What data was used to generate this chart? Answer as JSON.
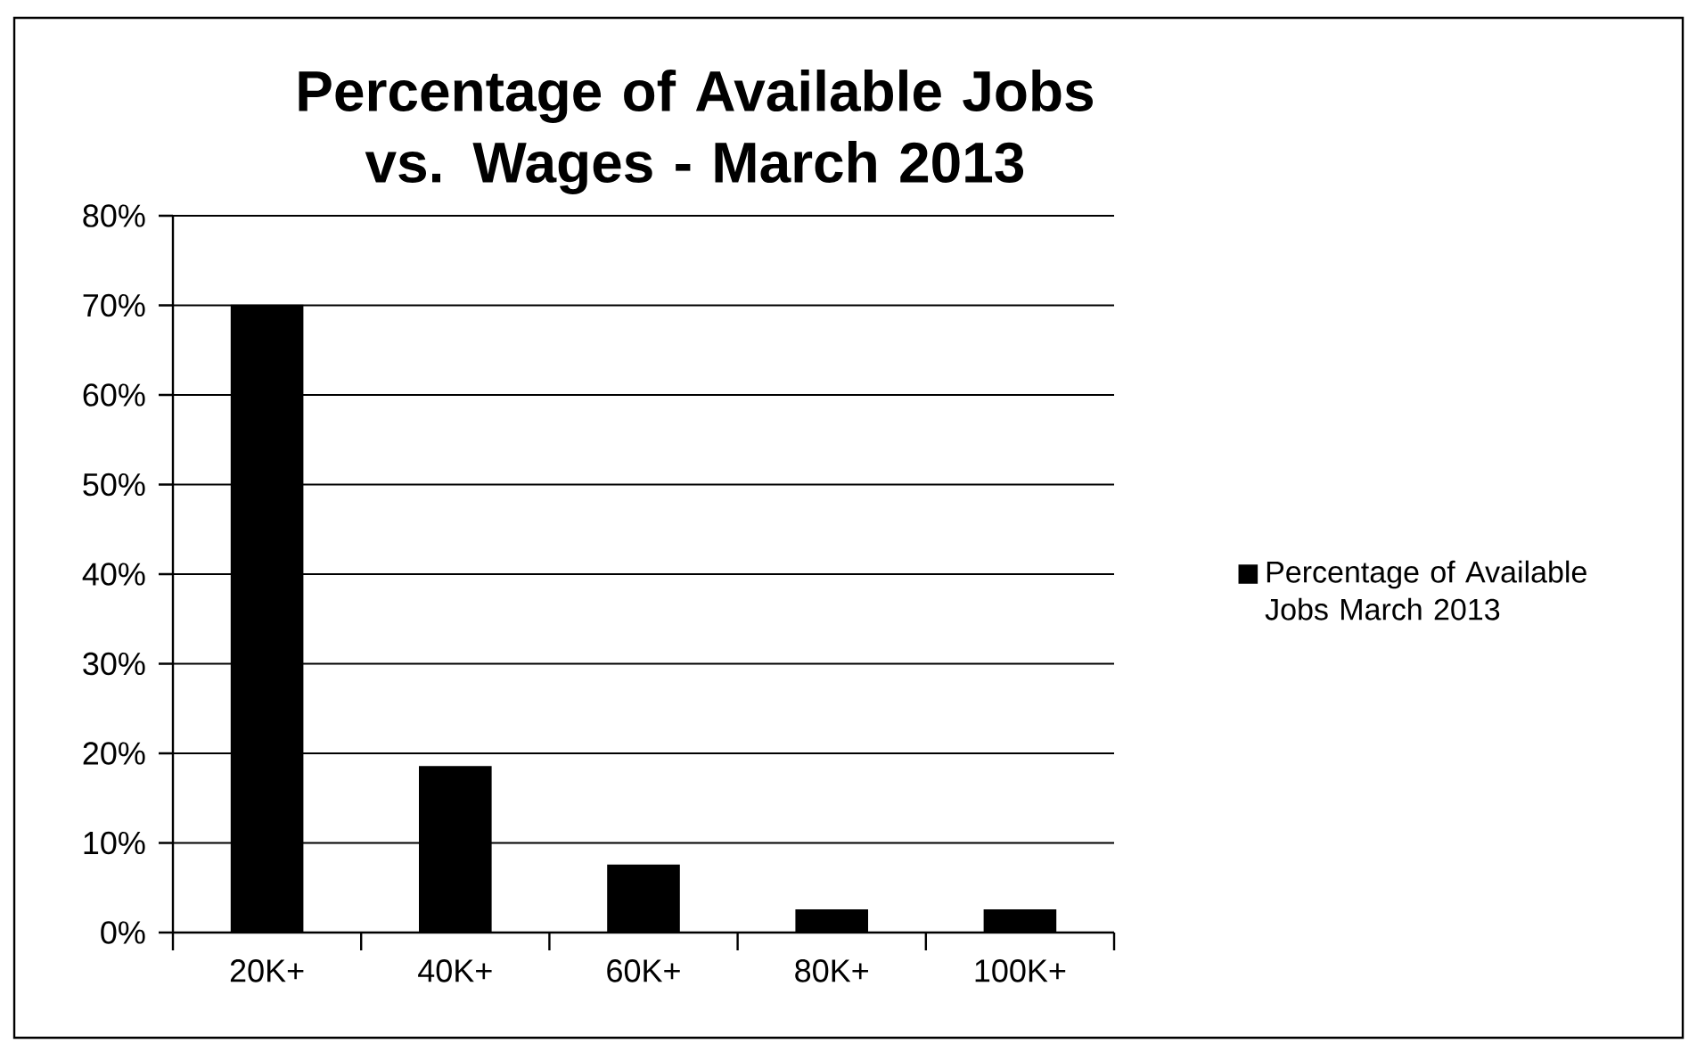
{
  "chart_data": {
    "type": "bar",
    "title": "Percentage of Available Jobs vs. Wages - March 2013",
    "categories": [
      "20K+",
      "40K+",
      "60K+",
      "80K+",
      "100K+"
    ],
    "series": [
      {
        "name": "Percentage of Available Jobs March 2013",
        "color": "#000000",
        "values": [
          70,
          18.5,
          7.5,
          2.5,
          2.5
        ]
      }
    ],
    "ylim": [
      0,
      80
    ],
    "yticks": [
      {
        "value": 0,
        "label": "0%"
      },
      {
        "value": 10,
        "label": "10%"
      },
      {
        "value": 20,
        "label": "20%"
      },
      {
        "value": 30,
        "label": "30%"
      },
      {
        "value": 40,
        "label": "40%"
      },
      {
        "value": 50,
        "label": "50%"
      },
      {
        "value": 60,
        "label": "60%"
      },
      {
        "value": 70,
        "label": "70%"
      },
      {
        "value": 80,
        "label": "80%"
      }
    ],
    "grid": "y",
    "legend": "right"
  }
}
